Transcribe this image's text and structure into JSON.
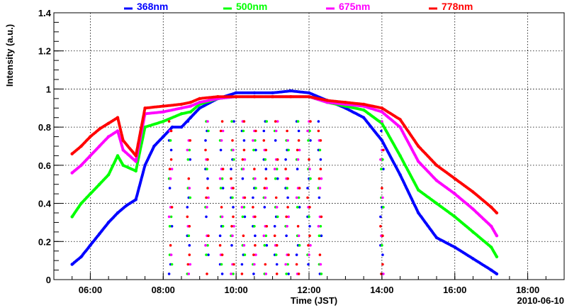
{
  "chart_data": {
    "type": "scatter",
    "title": "",
    "xlabel": "Time (JST)",
    "ylabel": "Intensity (a.u.)",
    "date_label": "2010-06-10",
    "xlim_hours": [
      5.0,
      19.0
    ],
    "ylim": [
      0,
      1.4
    ],
    "grid": true,
    "legend_placement": "top",
    "x_ticks": [
      {
        "hour": 6,
        "label": "06:00"
      },
      {
        "hour": 8,
        "label": "08:00"
      },
      {
        "hour": 10,
        "label": "10:00"
      },
      {
        "hour": 12,
        "label": "12:00"
      },
      {
        "hour": 14,
        "label": "14:00"
      },
      {
        "hour": 16,
        "label": "16:00"
      },
      {
        "hour": 18,
        "label": "18:00"
      }
    ],
    "y_ticks": [
      {
        "value": 0,
        "label": "0"
      },
      {
        "value": 0.2,
        "label": "0.2"
      },
      {
        "value": 0.4,
        "label": "0.4"
      },
      {
        "value": 0.6,
        "label": "0.6"
      },
      {
        "value": 0.8,
        "label": "0.8"
      },
      {
        "value": 1.0,
        "label": "1"
      },
      {
        "value": 1.2,
        "label": "1.2"
      },
      {
        "value": 1.4,
        "label": "1.4"
      }
    ],
    "series": [
      {
        "name": "368nm",
        "color": "#0000ff",
        "x": [
          5.5,
          5.75,
          6.0,
          6.25,
          6.5,
          6.75,
          7.0,
          7.25,
          7.5,
          7.75,
          8.0,
          8.25,
          8.5,
          8.75,
          9.0,
          9.5,
          10.0,
          10.5,
          11.0,
          11.5,
          12.0,
          12.5,
          13.0,
          13.5,
          14.0,
          14.5,
          15.0,
          15.5,
          16.0,
          16.5,
          17.0,
          17.15
        ],
        "values": [
          0.08,
          0.12,
          0.18,
          0.24,
          0.3,
          0.35,
          0.39,
          0.42,
          0.6,
          0.7,
          0.75,
          0.8,
          0.8,
          0.85,
          0.9,
          0.95,
          0.98,
          0.98,
          0.98,
          0.99,
          0.98,
          0.94,
          0.9,
          0.85,
          0.73,
          0.55,
          0.35,
          0.22,
          0.17,
          0.11,
          0.05,
          0.03
        ]
      },
      {
        "name": "500nm",
        "color": "#00ff00",
        "x": [
          5.5,
          5.75,
          6.0,
          6.25,
          6.5,
          6.75,
          6.9,
          7.25,
          7.5,
          8.0,
          8.5,
          8.75,
          9.0,
          9.5,
          10.0,
          10.5,
          11.0,
          11.5,
          12.0,
          12.5,
          13.0,
          13.5,
          14.0,
          14.5,
          15.0,
          15.5,
          16.0,
          16.5,
          17.0,
          17.15
        ],
        "values": [
          0.33,
          0.4,
          0.45,
          0.5,
          0.55,
          0.65,
          0.6,
          0.57,
          0.8,
          0.83,
          0.87,
          0.88,
          0.92,
          0.95,
          0.96,
          0.96,
          0.96,
          0.96,
          0.96,
          0.93,
          0.91,
          0.89,
          0.82,
          0.65,
          0.47,
          0.4,
          0.33,
          0.25,
          0.17,
          0.12
        ]
      },
      {
        "name": "675nm",
        "color": "#ff00ff",
        "x": [
          5.5,
          5.75,
          6.0,
          6.25,
          6.5,
          6.75,
          6.9,
          7.25,
          7.5,
          8.0,
          8.5,
          8.75,
          9.0,
          9.5,
          10.0,
          10.5,
          11.0,
          11.5,
          12.0,
          12.5,
          13.0,
          13.5,
          14.0,
          14.5,
          15.0,
          15.5,
          16.0,
          16.5,
          17.0,
          17.15
        ],
        "values": [
          0.56,
          0.6,
          0.65,
          0.7,
          0.75,
          0.78,
          0.68,
          0.62,
          0.87,
          0.88,
          0.9,
          0.91,
          0.93,
          0.95,
          0.96,
          0.96,
          0.96,
          0.96,
          0.96,
          0.93,
          0.92,
          0.91,
          0.88,
          0.8,
          0.62,
          0.52,
          0.45,
          0.37,
          0.28,
          0.23
        ]
      },
      {
        "name": "778nm",
        "color": "#ff0000",
        "x": [
          5.5,
          5.75,
          6.0,
          6.25,
          6.5,
          6.75,
          6.9,
          7.25,
          7.5,
          8.0,
          8.5,
          8.75,
          9.0,
          9.5,
          10.0,
          10.5,
          11.0,
          11.5,
          12.0,
          12.5,
          13.0,
          13.5,
          14.0,
          14.5,
          15.0,
          15.5,
          16.0,
          16.5,
          17.0,
          17.15
        ],
        "values": [
          0.66,
          0.7,
          0.75,
          0.79,
          0.82,
          0.85,
          0.73,
          0.65,
          0.9,
          0.91,
          0.92,
          0.93,
          0.95,
          0.96,
          0.96,
          0.96,
          0.96,
          0.96,
          0.96,
          0.94,
          0.93,
          0.92,
          0.9,
          0.84,
          0.7,
          0.6,
          0.53,
          0.46,
          0.38,
          0.35
        ]
      }
    ]
  }
}
